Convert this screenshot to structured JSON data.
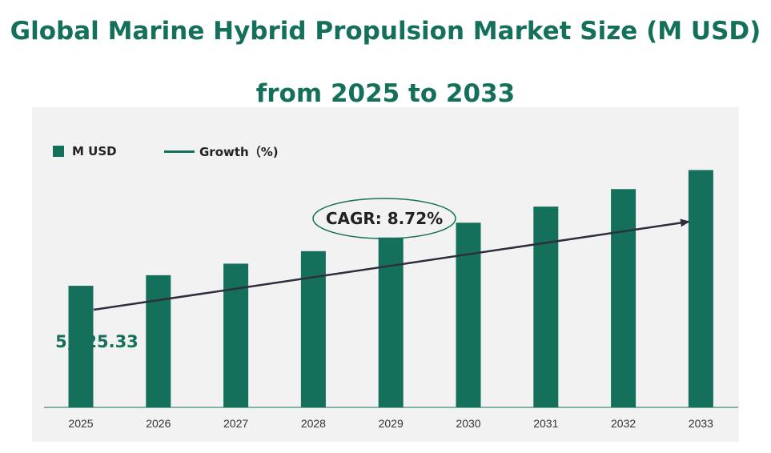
{
  "title": "Global Marine Hybrid Propulsion Market Size (M USD) from 2025 to 2033",
  "legend": {
    "bar_label": "M USD",
    "line_label": "Growth（%)"
  },
  "cagr_label": "CAGR:  8.72%",
  "first_value_label": "5,825.33",
  "colors": {
    "bar": "#14705a",
    "title": "#14705a",
    "panel": "#f2f2f2",
    "arrow": "#2e2e3e"
  },
  "chart_data": {
    "type": "bar",
    "categories": [
      "2025",
      "2026",
      "2027",
      "2028",
      "2029",
      "2030",
      "2031",
      "2032",
      "2033"
    ],
    "series": [
      {
        "name": "M USD",
        "values": [
          5825.33,
          6333.3,
          6885.6,
          7486.0,
          8138.8,
          8848.5,
          9620.1,
          10459.0,
          11371.0
        ]
      }
    ],
    "annotations": [
      "CAGR:  8.72%",
      "5,825.33"
    ],
    "ylim": [
      0,
      13000
    ],
    "grid": false,
    "legend_position": "top-left"
  }
}
